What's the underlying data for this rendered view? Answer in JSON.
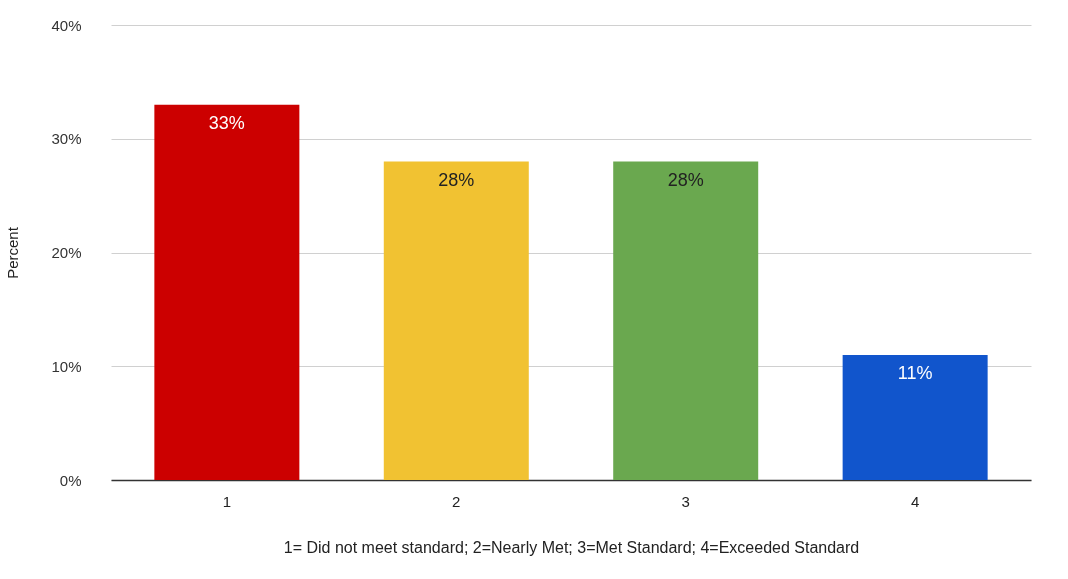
{
  "chart_data": {
    "type": "bar",
    "categories": [
      "1",
      "2",
      "3",
      "4"
    ],
    "values": [
      33,
      28,
      28,
      11
    ],
    "colors": [
      "#cc0000",
      "#f1c232",
      "#6aa84f",
      "#1155cc"
    ],
    "value_labels": [
      "33%",
      "28%",
      "28%",
      "11%"
    ],
    "ylabel": "Percent",
    "xlabel": "1= Did not meet standard; 2=Nearly Met; 3=Met Standard; 4=Exceeded Standard",
    "ylim": [
      0,
      40
    ],
    "yticks": [
      {
        "value": 0,
        "label": "0%"
      },
      {
        "value": 10,
        "label": "10%"
      },
      {
        "value": 20,
        "label": "20%"
      },
      {
        "value": 30,
        "label": "30%"
      },
      {
        "value": 40,
        "label": "40%"
      }
    ],
    "grid": "y"
  }
}
